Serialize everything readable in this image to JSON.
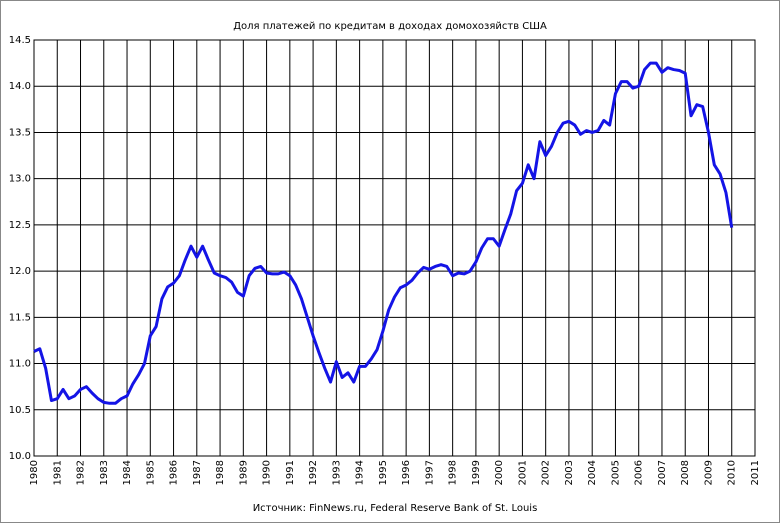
{
  "chart_data": {
    "type": "line",
    "title": "Доля платежей по кредитам в доходах домохозяйств США",
    "source": "Источник: FinNews.ru, Federal Reserve Bank of St. Louis",
    "x": [
      1980,
      1980.25,
      1980.5,
      1980.75,
      1981,
      1981.25,
      1981.5,
      1981.75,
      1982,
      1982.25,
      1982.5,
      1982.75,
      1983,
      1983.25,
      1983.5,
      1983.75,
      1984,
      1984.25,
      1984.5,
      1984.75,
      1985,
      1985.25,
      1985.5,
      1985.75,
      1986,
      1986.25,
      1986.5,
      1986.75,
      1987,
      1987.25,
      1987.5,
      1987.75,
      1988,
      1988.25,
      1988.5,
      1988.75,
      1989,
      1989.25,
      1989.5,
      1989.75,
      1990,
      1990.25,
      1990.5,
      1990.75,
      1991,
      1991.25,
      1991.5,
      1991.75,
      1992,
      1992.25,
      1992.5,
      1992.75,
      1993,
      1993.25,
      1993.5,
      1993.75,
      1994,
      1994.25,
      1994.5,
      1994.75,
      1995,
      1995.25,
      1995.5,
      1995.75,
      1996,
      1996.25,
      1996.5,
      1996.75,
      1997,
      1997.25,
      1997.5,
      1997.75,
      1998,
      1998.25,
      1998.5,
      1998.75,
      1999,
      1999.25,
      1999.5,
      1999.75,
      2000,
      2000.25,
      2000.5,
      2000.75,
      2001,
      2001.25,
      2001.5,
      2001.75,
      2002,
      2002.25,
      2002.5,
      2002.75,
      2003,
      2003.25,
      2003.5,
      2003.75,
      2004,
      2004.25,
      2004.5,
      2004.75,
      2005,
      2005.25,
      2005.5,
      2005.75,
      2006,
      2006.25,
      2006.5,
      2006.75,
      2007,
      2007.25,
      2007.5,
      2007.75,
      2008,
      2008.25,
      2008.5,
      2008.75,
      2009,
      2009.25,
      2009.5,
      2009.75,
      2010
    ],
    "series": [
      {
        "color": "#1414e6",
        "values": [
          11.13,
          11.16,
          10.95,
          10.6,
          10.62,
          10.72,
          10.62,
          10.65,
          10.72,
          10.75,
          10.68,
          10.62,
          10.58,
          10.57,
          10.57,
          10.62,
          10.65,
          10.78,
          10.88,
          11.0,
          11.3,
          11.4,
          11.7,
          11.83,
          11.87,
          11.95,
          12.12,
          12.27,
          12.15,
          12.27,
          12.12,
          11.98,
          11.95,
          11.93,
          11.88,
          11.77,
          11.73,
          11.95,
          12.03,
          12.05,
          11.98,
          11.97,
          11.97,
          11.99,
          11.95,
          11.85,
          11.7,
          11.5,
          11.3,
          11.12,
          10.95,
          10.8,
          11.02,
          10.85,
          10.9,
          10.8,
          10.97,
          10.97,
          11.05,
          11.15,
          11.35,
          11.58,
          11.72,
          11.82,
          11.85,
          11.9,
          11.98,
          12.04,
          12.02,
          12.05,
          12.07,
          12.05,
          11.95,
          11.98,
          11.97,
          12.0,
          12.1,
          12.25,
          12.35,
          12.35,
          12.27,
          12.45,
          12.62,
          12.87,
          12.95,
          13.15,
          13.0,
          13.4,
          13.25,
          13.35,
          13.5,
          13.6,
          13.62,
          13.58,
          13.48,
          13.52,
          13.5,
          13.52,
          13.63,
          13.58,
          13.92,
          14.05,
          14.05,
          13.98,
          14.0,
          14.18,
          14.25,
          14.25,
          14.15,
          14.2,
          14.18,
          14.17,
          14.14,
          13.68,
          13.8,
          13.78,
          13.5,
          13.15,
          13.05,
          12.85,
          12.47
        ]
      }
    ],
    "xlim": [
      1980,
      2011
    ],
    "xticks": [
      1980,
      1981,
      1982,
      1983,
      1984,
      1985,
      1986,
      1987,
      1988,
      1989,
      1990,
      1991,
      1992,
      1993,
      1994,
      1995,
      1996,
      1997,
      1998,
      1999,
      2000,
      2001,
      2002,
      2003,
      2004,
      2005,
      2006,
      2007,
      2008,
      2009,
      2010,
      2011
    ],
    "ylim": [
      10,
      14.5
    ],
    "yticks": [
      {
        "value": 10,
        "label": "10.0"
      },
      10.5,
      {
        "value": 11,
        "label": "11.0"
      },
      11.5,
      {
        "value": 12,
        "label": "12.0"
      },
      12.5,
      {
        "value": 13,
        "label": "13.0"
      },
      13.5,
      {
        "value": 14,
        "label": "14.0"
      },
      14.5
    ],
    "grid": true
  }
}
